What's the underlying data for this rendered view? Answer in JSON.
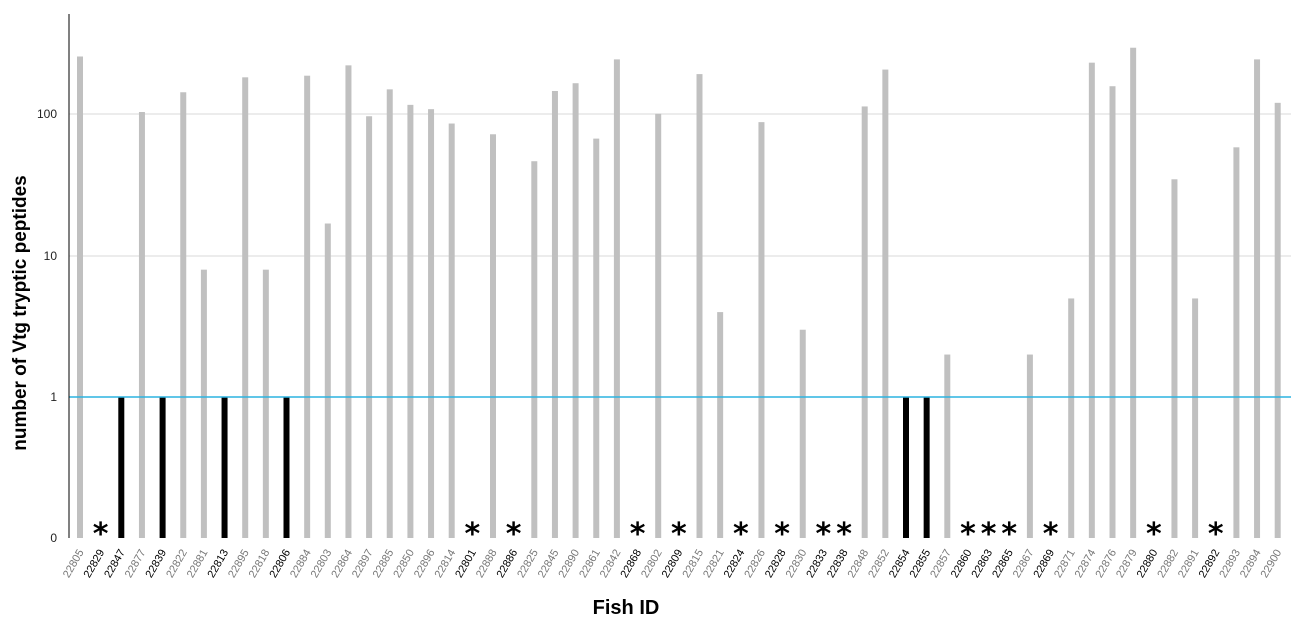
{
  "chart_data": {
    "type": "bar",
    "ylabel": "number of Vtg tryptic peptides",
    "xlabel": "Fish ID",
    "y_scale": "log",
    "y_ticks": [
      "0",
      "1",
      "10",
      "100"
    ],
    "threshold_line": 1,
    "threshold_color": "#2bb3e0",
    "bar_colors": {
      "gray": "#c0c0c0",
      "black": "#000000"
    },
    "tick_label_colors": {
      "gray": "#777777",
      "black": "#000000"
    },
    "grid": "horizontal",
    "categories": [
      "22805",
      "22829",
      "22847",
      "22877",
      "22839",
      "22822",
      "22881",
      "22813",
      "22895",
      "22818",
      "22806",
      "22884",
      "22803",
      "22864",
      "22897",
      "22885",
      "22850",
      "22896",
      "22814",
      "22801",
      "22888",
      "22886",
      "22825",
      "22845",
      "22890",
      "22861",
      "22842",
      "22868",
      "22802",
      "22809",
      "22815",
      "22821",
      "22824",
      "22826",
      "22828",
      "22830",
      "22833",
      "22838",
      "22848",
      "22852",
      "22854",
      "22855",
      "22857",
      "22860",
      "22863",
      "22865",
      "22867",
      "22869",
      "22871",
      "22874",
      "22876",
      "22879",
      "22880",
      "22882",
      "22891",
      "22892",
      "22893",
      "22894",
      "22900"
    ],
    "values": [
      260,
      0,
      1,
      105,
      1,
      145,
      8,
      1,
      185,
      8,
      1,
      190,
      17,
      225,
      98,
      152,
      118,
      110,
      87,
      0,
      73,
      0,
      47,
      148,
      168,
      68,
      248,
      0,
      102,
      0,
      195,
      4,
      0,
      89,
      0,
      3,
      0,
      0,
      115,
      210,
      1,
      1,
      2,
      0,
      0,
      0,
      2,
      0,
      5,
      235,
      160,
      300,
      0,
      35,
      5,
      0,
      59,
      248,
      122
    ],
    "bar_color_keys": [
      "gray",
      "star",
      "black",
      "gray",
      "black",
      "gray",
      "gray",
      "black",
      "gray",
      "gray",
      "black",
      "gray",
      "gray",
      "gray",
      "gray",
      "gray",
      "gray",
      "gray",
      "gray",
      "star",
      "gray",
      "star",
      "gray",
      "gray",
      "gray",
      "gray",
      "gray",
      "star",
      "gray",
      "star",
      "gray",
      "gray",
      "star",
      "gray",
      "star",
      "gray",
      "star",
      "star",
      "gray",
      "gray",
      "black",
      "black",
      "gray",
      "star",
      "star",
      "star",
      "gray",
      "star",
      "gray",
      "gray",
      "gray",
      "gray",
      "star",
      "gray",
      "gray",
      "star",
      "gray",
      "gray",
      "gray"
    ],
    "marker_symbol": "*"
  }
}
